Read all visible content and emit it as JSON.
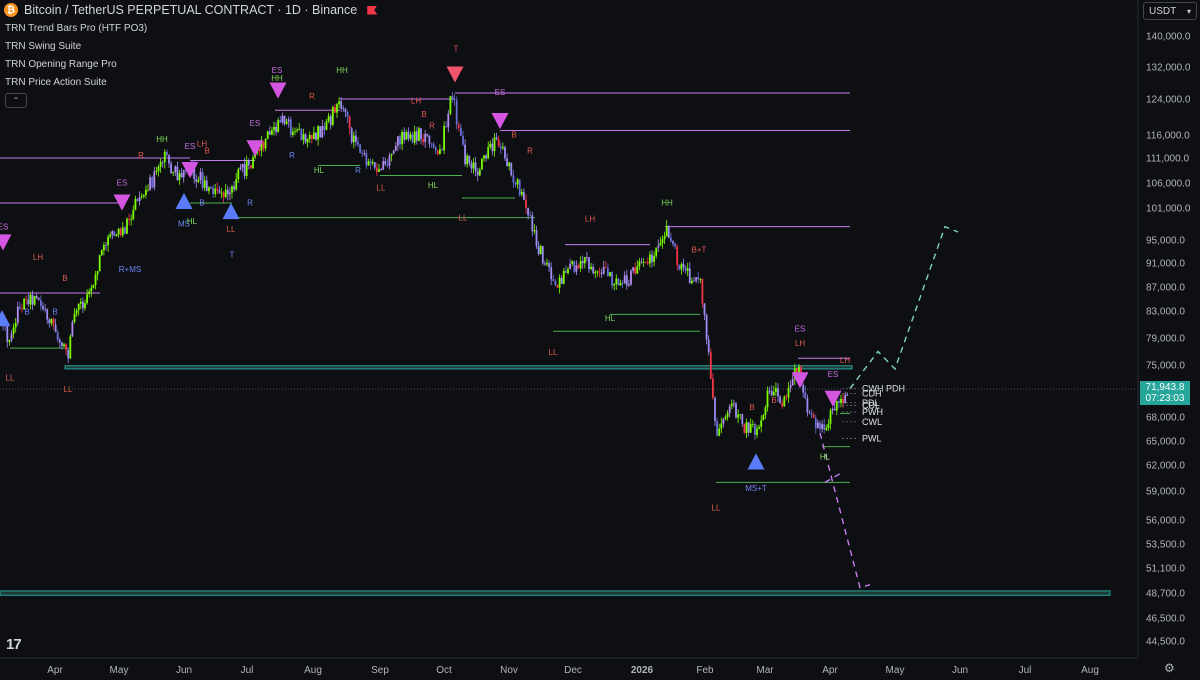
{
  "header": {
    "title": "Bitcoin / TetherUS PERPETUAL CONTRACT · 1D · Binance",
    "currency": "USDT"
  },
  "indicators": [
    "TRN Trend Bars Pro (HTF PO3)",
    "TRN Swing Suite",
    "TRN Opening Range Pro",
    "TRN Price Action Suite"
  ],
  "icons": {
    "symbol": "bitcoin-icon",
    "flag": "flag-icon",
    "collapse": "chevron-up-icon",
    "currency_dropdown": "chevron-down-icon",
    "logo": "tradingview-logo-icon",
    "settings": "gear-icon"
  },
  "price_badge": {
    "price": "71,943.8",
    "countdown": "07:23:03"
  },
  "colors": {
    "bg": "#0e0f13",
    "bull": "#7cfc00",
    "bear": "#f23645",
    "purple": "#c67bf0",
    "green_line": "#4caf50",
    "support_band": "#26a69a",
    "tri_down": "#d456e0",
    "tri_up": "#5b7cfa",
    "tri_top": "#f2546a"
  },
  "chart_data": {
    "type": "candlestick",
    "x_ticks": [
      "Apr",
      "May",
      "Jun",
      "Jul",
      "Aug",
      "Sep",
      "Oct",
      "Nov",
      "Dec",
      "2026",
      "Feb",
      "Mar",
      "Apr",
      "May",
      "Jun",
      "Jul",
      "Aug"
    ],
    "y_ticks": [
      "140,000.0",
      "132,000.0",
      "124,000.0",
      "116,000.0",
      "111,000.0",
      "106,000.0",
      "101,000.0",
      "95,000.0",
      "91,000.0",
      "87,000.0",
      "83,000.0",
      "79,000.0",
      "75,000.0",
      "68,000.0",
      "65,000.0",
      "62,000.0",
      "59,000.0",
      "56,000.0",
      "53,500.0",
      "51,100.0",
      "48,700.0",
      "46,500.0",
      "44,500.0"
    ],
    "close_path": [
      [
        0,
        82000
      ],
      [
        10,
        78000
      ],
      [
        20,
        84000
      ],
      [
        35,
        85000
      ],
      [
        55,
        80500
      ],
      [
        68,
        76000
      ],
      [
        75,
        83000
      ],
      [
        90,
        86000
      ],
      [
        105,
        95000
      ],
      [
        125,
        97000
      ],
      [
        140,
        104000
      ],
      [
        155,
        107000
      ],
      [
        165,
        111000
      ],
      [
        180,
        107000
      ],
      [
        195,
        108000
      ],
      [
        210,
        105000
      ],
      [
        225,
        103000
      ],
      [
        240,
        108000
      ],
      [
        255,
        111000
      ],
      [
        265,
        115000
      ],
      [
        280,
        119000
      ],
      [
        295,
        117000
      ],
      [
        310,
        115000
      ],
      [
        325,
        118000
      ],
      [
        340,
        123000
      ],
      [
        355,
        114000
      ],
      [
        370,
        110000
      ],
      [
        385,
        109000
      ],
      [
        400,
        115000
      ],
      [
        420,
        116000
      ],
      [
        440,
        112000
      ],
      [
        452,
        125000
      ],
      [
        465,
        111000
      ],
      [
        478,
        108000
      ],
      [
        490,
        113000
      ],
      [
        500,
        115000
      ],
      [
        510,
        109000
      ],
      [
        525,
        102000
      ],
      [
        540,
        93000
      ],
      [
        555,
        87500
      ],
      [
        570,
        90000
      ],
      [
        585,
        91000
      ],
      [
        600,
        90000
      ],
      [
        615,
        87500
      ],
      [
        630,
        88500
      ],
      [
        645,
        91500
      ],
      [
        658,
        93000
      ],
      [
        668,
        97000
      ],
      [
        680,
        90000
      ],
      [
        692,
        88500
      ],
      [
        700,
        88000
      ],
      [
        708,
        77000
      ],
      [
        716,
        65500
      ],
      [
        730,
        70000
      ],
      [
        745,
        66500
      ],
      [
        758,
        66000
      ],
      [
        770,
        72000
      ],
      [
        785,
        70000
      ],
      [
        798,
        75000
      ],
      [
        810,
        68000
      ],
      [
        822,
        66500
      ],
      [
        835,
        69000
      ],
      [
        848,
        72000
      ]
    ],
    "lines": [
      {
        "kind": "purple",
        "x1": 0,
        "x2": 190,
        "y": 111000
      },
      {
        "kind": "purple",
        "x1": 0,
        "x2": 118,
        "y": 102000
      },
      {
        "kind": "purple",
        "x1": 190,
        "x2": 255,
        "y": 110500
      },
      {
        "kind": "purple",
        "x1": 275,
        "x2": 340,
        "y": 121500
      },
      {
        "kind": "purple",
        "x1": 340,
        "x2": 455,
        "y": 124000
      },
      {
        "kind": "purple",
        "x1": 455,
        "x2": 850,
        "y": 125500
      },
      {
        "kind": "purple",
        "x1": 500,
        "x2": 850,
        "y": 117000
      },
      {
        "kind": "purple",
        "x1": 665,
        "x2": 850,
        "y": 97500
      },
      {
        "kind": "purple",
        "x1": 565,
        "x2": 650,
        "y": 94200
      },
      {
        "kind": "purple",
        "x1": 798,
        "x2": 850,
        "y": 76000
      },
      {
        "kind": "purple",
        "x1": 0,
        "x2": 100,
        "y": 86000
      },
      {
        "kind": "green",
        "x1": 10,
        "x2": 68,
        "y": 77500
      },
      {
        "kind": "green",
        "x1": 190,
        "x2": 232,
        "y": 102000
      },
      {
        "kind": "green",
        "x1": 232,
        "x2": 535,
        "y": 99200
      },
      {
        "kind": "green",
        "x1": 318,
        "x2": 360,
        "y": 109500
      },
      {
        "kind": "green",
        "x1": 380,
        "x2": 462,
        "y": 107500
      },
      {
        "kind": "green",
        "x1": 462,
        "x2": 515,
        "y": 103000
      },
      {
        "kind": "green",
        "x1": 553,
        "x2": 700,
        "y": 80000
      },
      {
        "kind": "green",
        "x1": 610,
        "x2": 700,
        "y": 82500
      },
      {
        "kind": "green",
        "x1": 716,
        "x2": 850,
        "y": 60000
      },
      {
        "kind": "green",
        "x1": 822,
        "x2": 850,
        "y": 64300
      },
      {
        "kind": "green",
        "x1": 840,
        "x2": 850,
        "y": 68500
      },
      {
        "kind": "band",
        "x1": 65,
        "x2": 852,
        "y1": 74900,
        "y2": 74500
      },
      {
        "kind": "band",
        "x1": 0,
        "x2": 1110,
        "y1": 48900,
        "y2": 48500
      }
    ],
    "projections": [
      {
        "color": "#7fd3c4",
        "points": [
          [
            850,
            72000
          ],
          [
            878,
            77000
          ],
          [
            895,
            74500
          ],
          [
            945,
            97500
          ],
          [
            958,
            96500
          ]
        ]
      },
      {
        "color": "#c67bf0",
        "points": [
          [
            820,
            66000
          ],
          [
            860,
            49200
          ],
          [
            870,
            49500
          ]
        ]
      },
      {
        "color": "#c67bf0",
        "points": [
          [
            825,
            60000
          ],
          [
            840,
            61000
          ]
        ]
      }
    ],
    "triangles": [
      {
        "dir": "down",
        "x": 3,
        "y": 94500,
        "color": "tri_down"
      },
      {
        "dir": "down",
        "x": 122,
        "y": 102000,
        "color": "tri_down"
      },
      {
        "dir": "down",
        "x": 190,
        "y": 108500,
        "color": "tri_down"
      },
      {
        "dir": "down",
        "x": 255,
        "y": 113000,
        "color": "tri_down"
      },
      {
        "dir": "down",
        "x": 278,
        "y": 126000,
        "color": "tri_down"
      },
      {
        "dir": "down",
        "x": 455,
        "y": 130000,
        "color": "tri_top"
      },
      {
        "dir": "down",
        "x": 500,
        "y": 119000,
        "color": "tri_down"
      },
      {
        "dir": "down",
        "x": 800,
        "y": 73000,
        "color": "tri_down"
      },
      {
        "dir": "down",
        "x": 833,
        "y": 70500,
        "color": "tri_down"
      },
      {
        "dir": "up",
        "x": 184,
        "y": 102500,
        "color": "tri_up"
      },
      {
        "dir": "up",
        "x": 231,
        "y": 100500,
        "color": "tri_up"
      },
      {
        "dir": "up",
        "x": 756,
        "y": 62500,
        "color": "tri_up"
      },
      {
        "dir": "up",
        "x": 2,
        "y": 82000,
        "color": "tri_up"
      }
    ],
    "annotations": [
      {
        "text": "ES",
        "x": 3,
        "y": 97000,
        "color": "purple"
      },
      {
        "text": "LH",
        "x": 38,
        "y": 91500,
        "color": "red"
      },
      {
        "text": "B",
        "x": 65,
        "y": 88000,
        "color": "red"
      },
      {
        "text": "B",
        "x": 27,
        "y": 82500,
        "color": "blue"
      },
      {
        "text": "B",
        "x": 55,
        "y": 82500,
        "color": "blue"
      },
      {
        "text": "LL",
        "x": 10,
        "y": 73000,
        "color": "red"
      },
      {
        "text": "LL",
        "x": 68,
        "y": 71500,
        "color": "red"
      },
      {
        "text": "ES",
        "x": 122,
        "y": 105500,
        "color": "purple"
      },
      {
        "text": "R",
        "x": 141,
        "y": 111000,
        "color": "red"
      },
      {
        "text": "R+MS",
        "x": 130,
        "y": 89500,
        "color": "blue"
      },
      {
        "text": "HH",
        "x": 162,
        "y": 114500,
        "color": "green"
      },
      {
        "text": "ES",
        "x": 190,
        "y": 113000,
        "color": "purple"
      },
      {
        "text": "LH",
        "x": 202,
        "y": 113500,
        "color": "red"
      },
      {
        "text": "B",
        "x": 207,
        "y": 112000,
        "color": "red"
      },
      {
        "text": "B",
        "x": 202,
        "y": 101500,
        "color": "blue"
      },
      {
        "text": "MS",
        "x": 184,
        "y": 97500,
        "color": "blue"
      },
      {
        "text": "HL",
        "x": 192,
        "y": 98000,
        "color": "green"
      },
      {
        "text": "LL",
        "x": 231,
        "y": 96500,
        "color": "red"
      },
      {
        "text": "T",
        "x": 232,
        "y": 92000,
        "color": "blue"
      },
      {
        "text": "R",
        "x": 250,
        "y": 101500,
        "color": "blue"
      },
      {
        "text": "ES",
        "x": 255,
        "y": 118000,
        "color": "purple"
      },
      {
        "text": "ES",
        "x": 277,
        "y": 130500,
        "color": "purple"
      },
      {
        "text": "HH",
        "x": 277,
        "y": 128500,
        "color": "green"
      },
      {
        "text": "R",
        "x": 312,
        "y": 124000,
        "color": "red"
      },
      {
        "text": "HH",
        "x": 342,
        "y": 130500,
        "color": "green"
      },
      {
        "text": "R",
        "x": 292,
        "y": 111000,
        "color": "blue"
      },
      {
        "text": "HL",
        "x": 319,
        "y": 108000,
        "color": "green"
      },
      {
        "text": "R",
        "x": 358,
        "y": 108000,
        "color": "blue"
      },
      {
        "text": "LL",
        "x": 381,
        "y": 104500,
        "color": "red"
      },
      {
        "text": "HL",
        "x": 433,
        "y": 105000,
        "color": "green"
      },
      {
        "text": "LH",
        "x": 416,
        "y": 123000,
        "color": "red"
      },
      {
        "text": "B",
        "x": 424,
        "y": 120000,
        "color": "red"
      },
      {
        "text": "R",
        "x": 432,
        "y": 117500,
        "color": "red"
      },
      {
        "text": "T",
        "x": 456,
        "y": 136000,
        "color": "red"
      },
      {
        "text": "ES",
        "x": 500,
        "y": 125000,
        "color": "purple"
      },
      {
        "text": "B",
        "x": 514,
        "y": 115500,
        "color": "red"
      },
      {
        "text": "R",
        "x": 530,
        "y": 112000,
        "color": "red"
      },
      {
        "text": "LL",
        "x": 463,
        "y": 98700,
        "color": "red"
      },
      {
        "text": "LH",
        "x": 590,
        "y": 98500,
        "color": "red"
      },
      {
        "text": "HH",
        "x": 667,
        "y": 101500,
        "color": "green"
      },
      {
        "text": "B+T",
        "x": 699,
        "y": 92800,
        "color": "red"
      },
      {
        "text": "HL",
        "x": 610,
        "y": 81500,
        "color": "green"
      },
      {
        "text": "LL",
        "x": 553,
        "y": 76500,
        "color": "red"
      },
      {
        "text": "ES",
        "x": 800,
        "y": 80000,
        "color": "purple"
      },
      {
        "text": "LH",
        "x": 800,
        "y": 77800,
        "color": "red"
      },
      {
        "text": "LH",
        "x": 845,
        "y": 75300,
        "color": "red"
      },
      {
        "text": "ES",
        "x": 833,
        "y": 73500,
        "color": "purple"
      },
      {
        "text": "B",
        "x": 752,
        "y": 69000,
        "color": "red"
      },
      {
        "text": "B",
        "x": 774,
        "y": 70000,
        "color": "red"
      },
      {
        "text": "HL",
        "x": 825,
        "y": 62700,
        "color": "green"
      },
      {
        "text": "MS+T",
        "x": 756,
        "y": 59000,
        "color": "blue"
      },
      {
        "text": "LL",
        "x": 716,
        "y": 57000,
        "color": "red"
      }
    ],
    "level_labels": [
      {
        "text": "CWH PDH",
        "y": 72000
      },
      {
        "text": "CDH",
        "y": 71300
      },
      {
        "text": "PDL",
        "y": 70000
      },
      {
        "text": "CDL",
        "y": 69600
      },
      {
        "text": "PWH",
        "y": 68700
      },
      {
        "text": "CWL",
        "y": 67400
      },
      {
        "text": "PWL",
        "y": 65300
      }
    ],
    "current_price": 71943.8
  }
}
